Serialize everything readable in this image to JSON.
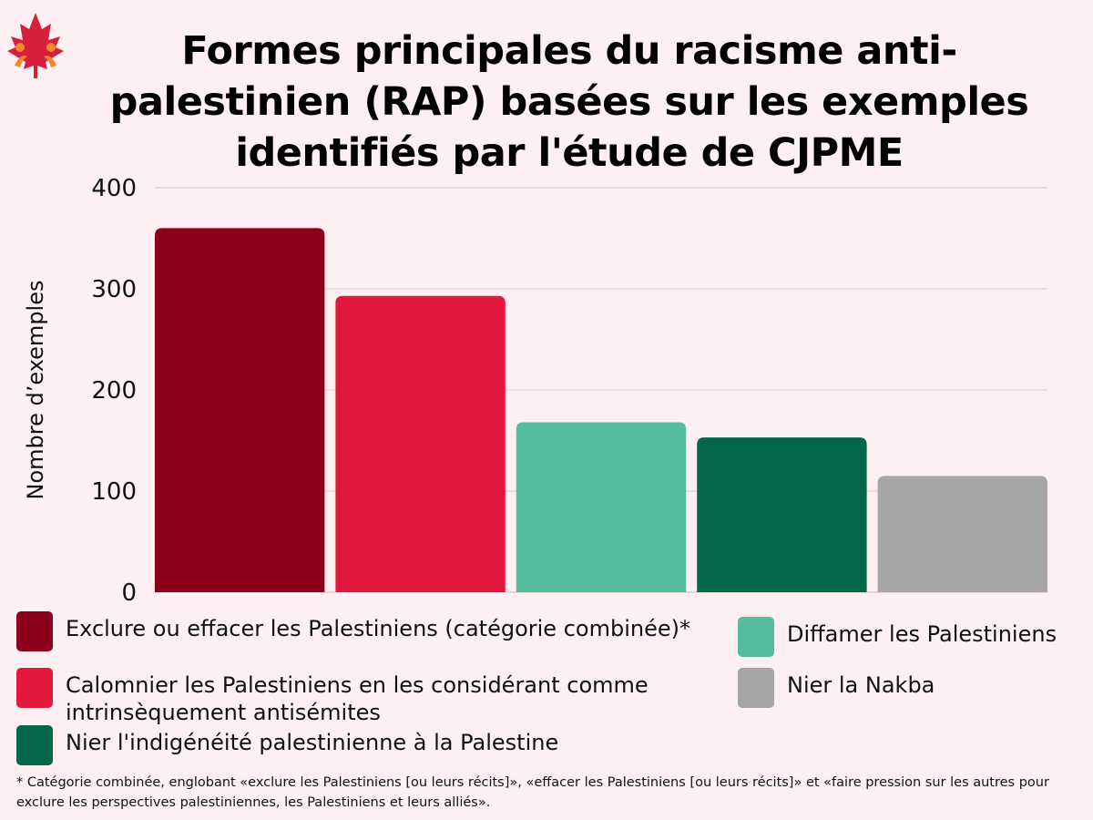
{
  "chart_data": {
    "type": "bar",
    "title": "Formes principales du racisme anti-palestinien (RAP) basées sur les exemples identifiés par l'étude de CJPME",
    "ylabel": "Nombre d’exemples",
    "xlabel": "",
    "ylim": [
      0,
      400
    ],
    "yticks": [
      0,
      100,
      200,
      300,
      400
    ],
    "grid": true,
    "categories": [
      "Exclure ou effacer les Palestiniens (catégorie combinée)*",
      "Calomnier les Palestiniens en les considérant comme intrinsèquement antisémites",
      "Diffamer les Palestiniens",
      "Nier l'indigénéité palestinienne à la Palestine",
      "Nier la Nakba"
    ],
    "values": [
      360,
      293,
      168,
      153,
      115
    ],
    "colors": [
      "#8c001c",
      "#e2183f",
      "#55bd9e",
      "#04674a",
      "#a6a6a6"
    ]
  },
  "legend": [
    {
      "label": "Exclure ou effacer les Palestiniens (catégorie combinée)*",
      "color": "#8c001c"
    },
    {
      "label": "Calomnier les Palestiniens en les considérant comme intrinsèquement antisémites",
      "color": "#e2183f"
    },
    {
      "label": "Nier l'indigénéité palestinienne à la Palestine",
      "color": "#04674a"
    },
    {
      "label": "Diffamer les Palestiniens",
      "color": "#55bd9e"
    },
    {
      "label": "Nier la Nakba",
      "color": "#a6a6a6"
    }
  ],
  "footnote": "* Catégorie combinée, englobant «exclure les Palestiniens [ou leurs récits]», «effacer les Palestiniens [ou leurs récits]» et «faire pression sur les autres pour exclure les perspectives palestiniennes, les Palestiniens et leurs alliés».",
  "logo": {
    "icon": "maple-leaf-icon",
    "colors": [
      "#d61f3c",
      "#f08a2a"
    ]
  }
}
